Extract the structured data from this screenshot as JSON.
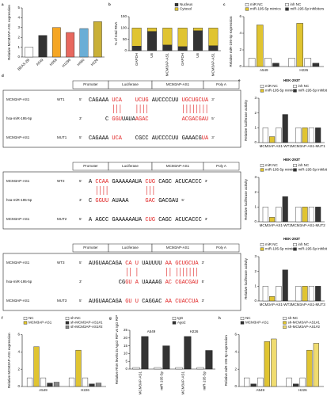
{
  "chart_data": [
    {
      "type": "bar",
      "panel": "a",
      "ylabel": "Relative MCM3AP-AS1 expression",
      "categories": [
        "BEAS-2B",
        "A549",
        "H358",
        "H1299",
        "H460",
        "H226"
      ],
      "values": [
        1.0,
        2.2,
        3.0,
        2.5,
        2.9,
        3.6
      ],
      "colors": [
        "#ffffff",
        "#333333",
        "#f5a623",
        "#e8685e",
        "#6aaed6",
        "#c9b037"
      ],
      "ylim": [
        0,
        5
      ],
      "yticks": [
        0,
        1,
        2,
        3,
        4,
        5
      ]
    },
    {
      "type": "bar",
      "stacked": true,
      "panel": "b",
      "ylabel": "% of total RNA",
      "categories": [
        "GAPDH",
        "U6",
        "MCM3AP-AS1",
        "GAPDH",
        "U6",
        "MCM3AP-AS1"
      ],
      "series": [
        {
          "name": "Nucleus",
          "color": "#333333",
          "values": [
            20,
            85,
            25,
            18,
            88,
            22
          ]
        },
        {
          "name": "Cytosol",
          "color": "#e0c431",
          "values": [
            80,
            15,
            75,
            82,
            12,
            78
          ]
        }
      ],
      "ylim": [
        0,
        150
      ],
      "yticks": [
        0,
        50,
        100,
        150
      ]
    },
    {
      "type": "bar",
      "panel": "c",
      "ylabel": "Relative miR-195-5p expression",
      "categories": [
        "A549",
        "H226"
      ],
      "series": [
        {
          "name": "miR NC",
          "color": "#ffffff",
          "values": [
            1.0,
            1.0
          ]
        },
        {
          "name": "miR-195-5p mimics",
          "color": "#e0c431",
          "values": [
            5.0,
            5.2
          ]
        },
        {
          "name": "inh NC",
          "color": "#ffffff",
          "values": [
            1.0,
            1.0
          ]
        },
        {
          "name": "miR-195-5p inhibitors",
          "color": "#333333",
          "values": [
            0.4,
            0.4
          ]
        }
      ],
      "ylim": [
        0,
        6
      ],
      "yticks": [
        0,
        2,
        4,
        6
      ]
    },
    {
      "type": "bar",
      "panel": "e",
      "title": "HEK-293T",
      "ylabel": "Relative luciferase activity",
      "categories": [
        "MCM3AP-AS1-WT1",
        "MCM3AP-AS1-MUT1"
      ],
      "series": [
        {
          "name": "miR NC",
          "color": "#ffffff",
          "values": [
            1.0,
            1.0
          ]
        },
        {
          "name": "miR-195-5p mimics",
          "color": "#e0c431",
          "values": [
            0.4,
            1.0
          ]
        },
        {
          "name": "inh NC",
          "color": "#ffffff",
          "values": [
            1.0,
            1.0
          ]
        },
        {
          "name": "miR-195-5p inhibitors",
          "color": "#333333",
          "values": [
            1.9,
            1.0
          ]
        }
      ],
      "ylim": [
        0,
        3
      ],
      "yticks": [
        0,
        1,
        2,
        3
      ]
    },
    {
      "type": "bar",
      "title": "HEK-293T",
      "ylabel": "Relative luciferase activity",
      "categories": [
        "MCM3AP-AS1-WT2",
        "MCM3AP-AS1-MUT2"
      ],
      "series": [
        {
          "name": "miR NC",
          "color": "#ffffff",
          "values": [
            1.0,
            1.0
          ]
        },
        {
          "name": "miR-195-5p mimics",
          "color": "#e0c431",
          "values": [
            0.3,
            1.0
          ]
        },
        {
          "name": "inh NC",
          "color": "#ffffff",
          "values": [
            1.0,
            1.0
          ]
        },
        {
          "name": "miR-195-5p inhibitors",
          "color": "#333333",
          "values": [
            1.7,
            1.0
          ]
        }
      ],
      "ylim": [
        0,
        3
      ],
      "yticks": [
        0,
        1,
        2,
        3
      ]
    },
    {
      "type": "bar",
      "title": "HEK-293T",
      "ylabel": "Relative luciferase activity",
      "categories": [
        "MCM3AP-AS1-WT3",
        "MCM3AP-AS1-MUT3"
      ],
      "series": [
        {
          "name": "miR NC",
          "color": "#ffffff",
          "values": [
            1.0,
            1.0
          ]
        },
        {
          "name": "miR-195-5p mimics",
          "color": "#e0c431",
          "values": [
            0.3,
            1.0
          ]
        },
        {
          "name": "inh NC",
          "color": "#ffffff",
          "values": [
            1.0,
            1.0
          ]
        },
        {
          "name": "miR-195-5p inhibitors",
          "color": "#333333",
          "values": [
            2.1,
            1.0
          ]
        }
      ],
      "ylim": [
        0,
        3
      ],
      "yticks": [
        0,
        1,
        2,
        3
      ]
    },
    {
      "type": "bar",
      "panel": "f",
      "ylabel": "Relative MCM3AP-AS1 expression",
      "categories": [
        "A549",
        "H226"
      ],
      "series": [
        {
          "name": "NC",
          "color": "#ffffff",
          "values": [
            1.0,
            1.0
          ]
        },
        {
          "name": "MCM3AP-AS1",
          "color": "#e0c431",
          "values": [
            4.6,
            4.2
          ]
        },
        {
          "name": "sh-NC",
          "color": "#ffffff",
          "values": [
            1.0,
            1.0
          ]
        },
        {
          "name": "sh-MCM3AP-AS1#1",
          "color": "#333333",
          "values": [
            0.4,
            0.3
          ]
        },
        {
          "name": "sh-MCM3AP-AS1#2",
          "color": "#888888",
          "values": [
            0.5,
            0.4
          ]
        }
      ],
      "ylim": [
        0,
        6
      ],
      "yticks": [
        0,
        2,
        4,
        6
      ]
    },
    {
      "type": "bar",
      "panel": "g",
      "ylabel": "Relative RNA levels in Ago2 RIP vs IgG RIP",
      "categories": [
        "MCM3AP-AS1",
        "miR-195-5p",
        "MCM3AP-AS1",
        "miR-195-5p"
      ],
      "groups": [
        "A549",
        "H226"
      ],
      "series": [
        {
          "name": "IgG",
          "color": "#ffffff",
          "values": [
            1,
            1,
            1,
            1
          ]
        },
        {
          "name": "Ago2",
          "color": "#333333",
          "values": [
            21,
            15,
            21,
            12
          ]
        }
      ],
      "ylim": [
        0,
        25
      ],
      "yticks": [
        0,
        5,
        10,
        15,
        20,
        25
      ]
    },
    {
      "type": "bar",
      "panel": "h",
      "ylabel": "Relative miR-195-5p expression",
      "categories": [
        "A549",
        "H226"
      ],
      "series": [
        {
          "name": "NC",
          "color": "#ffffff",
          "values": [
            1.0,
            1.0
          ]
        },
        {
          "name": "MCM3AP-AS1",
          "color": "#333333",
          "values": [
            0.3,
            0.3
          ]
        },
        {
          "name": "sh-NC",
          "color": "#ffffff",
          "values": [
            1.0,
            1.0
          ]
        },
        {
          "name": "sh-MCM3AP-AS1#1",
          "color": "#e0c431",
          "values": [
            5.2,
            4.2
          ]
        },
        {
          "name": "sh-MCM3AP-AS1#2",
          "color": "#f0dc70",
          "values": [
            5.5,
            5.0
          ]
        }
      ],
      "ylim": [
        0,
        6
      ],
      "yticks": [
        0,
        2,
        4,
        6
      ]
    }
  ],
  "sequences": {
    "panel": "d",
    "boxes": [
      {
        "header": [
          "Promoter",
          "Luciferase",
          "MCM3AP-AS1",
          "Poly A"
        ],
        "rows": [
          {
            "name": "MCM3AP-AS1",
            "tag": "WT1",
            "start": "5'",
            "end": "3'",
            "segments": [
              {
                "text": "CAGAAA ",
                "color": "#000000"
              },
              {
                "text": "UCA    UCUG",
                "color": "#e02020"
              },
              {
                "text": " AUCCCCUU ",
                "color": "#000000"
              },
              {
                "text": "UGCUGCUA",
                "color": "#e02020"
              }
            ]
          },
          {
            "name": "hsa-miR-195-5p",
            "start": "3'",
            "end": "5'",
            "segments": [
              {
                "text": "     C ",
                "color": "#000000"
              },
              {
                "text": "GGU",
                "color": "#e02020"
              },
              {
                "text": "UAUA",
                "color": "#000000"
              },
              {
                "text": "AGAC          ACGACGAU",
                "color": "#e02020"
              }
            ]
          },
          {
            "name": "MCM3AP-AS1",
            "tag": "MUT1",
            "start": "5'",
            "end": "3'",
            "segments": [
              {
                "text": "CAGAAA ",
                "color": "#000000"
              },
              {
                "text": "UCA",
                "color": "#e02020"
              },
              {
                "text": "    CGCC AUCCCCUU GAAACG",
                "color": "#000000"
              },
              {
                "text": "UA",
                "color": "#e02020"
              }
            ]
          }
        ]
      },
      {
        "header": [
          "Promoter",
          "Luciferase",
          "MCM3AP-AS1",
          "Poly A"
        ],
        "rows": [
          {
            "name": "MCM3AP-AS1",
            "tag": "WT2",
            "start": "5'",
            "end": "3'",
            "segments": [
              {
                "text": "A ",
                "color": "#000000"
              },
              {
                "text": "CCAA",
                "color": "#e02020"
              },
              {
                "text": " GAAAAAAUA ",
                "color": "#000000"
              },
              {
                "text": "CUG",
                "color": "#e02020"
              },
              {
                "text": " CAGC ACUCACCC",
                "color": "#000000"
              }
            ]
          },
          {
            "name": "hsa-miR-195-5p",
            "start": "3'",
            "end": "5'",
            "segments": [
              {
                "text": "C ",
                "color": "#000000"
              },
              {
                "text": "GGUU",
                "color": "#e02020"
              },
              {
                "text": " AUAAA     ",
                "color": "#000000"
              },
              {
                "text": "GAC",
                "color": "#e02020"
              },
              {
                "text": " GACGAU",
                "color": "#000000"
              }
            ]
          },
          {
            "name": "MCM3AP-AS1",
            "tag": "MUT2",
            "start": "5'",
            "end": "3'",
            "segments": [
              {
                "text": "A AGCC GAAAAAAUA ",
                "color": "#000000"
              },
              {
                "text": "CUG",
                "color": "#e02020"
              },
              {
                "text": " CAGC ACUCACCC",
                "color": "#000000"
              }
            ]
          }
        ]
      },
      {
        "header": [
          "Promoter",
          "Luciferase",
          "MCM3AP-AS1",
          "Poly A"
        ],
        "rows": [
          {
            "name": "MCM3AP-AS1",
            "tag": "WT3",
            "start": "5'",
            "end": "3'",
            "segments": [
              {
                "text": "AUGUAACAGA ",
                "color": "#000000"
              },
              {
                "text": "CA U",
                "color": "#e02020"
              },
              {
                "text": " UAUUUU ",
                "color": "#000000"
              },
              {
                "text": "AA GCUGCUA",
                "color": "#e02020"
              }
            ]
          },
          {
            "name": "hsa-miR-195-5p",
            "start": "3'",
            "end": "5'",
            "segments": [
              {
                "text": "         CG",
                "color": "#000000"
              },
              {
                "text": "GU A",
                "color": "#e02020"
              },
              {
                "text": " UAAAAG ",
                "color": "#000000"
              },
              {
                "text": "AC CGACGAU",
                "color": "#e02020"
              }
            ]
          },
          {
            "name": "MCM3AP-AS1",
            "tag": "MUT3",
            "start": "5'",
            "end": "3'",
            "segments": [
              {
                "text": "AUGUAACAGA ",
                "color": "#000000"
              },
              {
                "text": "GU U",
                "color": "#e02020"
              },
              {
                "text": " CAGGAC ",
                "color": "#000000"
              },
              {
                "text": "AA CUACCUA",
                "color": "#e02020"
              }
            ]
          }
        ]
      }
    ]
  }
}
